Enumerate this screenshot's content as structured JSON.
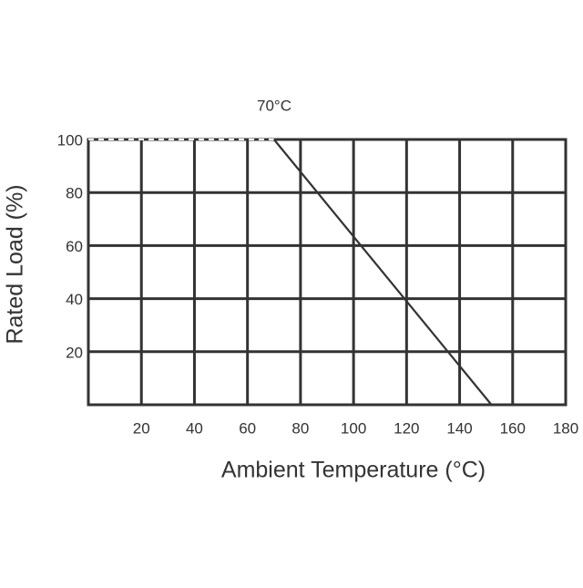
{
  "chart_data": {
    "type": "line",
    "annotation": "70°C",
    "x_label": "Ambient Temperature (°C)",
    "y_label": "Rated Load (%)",
    "series": [
      {
        "x": [
          0,
          70
        ],
        "values": [
          100,
          100
        ],
        "color": "#333333",
        "dashed": true
      },
      {
        "x": [
          70,
          152
        ],
        "values": [
          100,
          0
        ],
        "color": "#333333",
        "dashed": false
      }
    ],
    "xlim": [
      0,
      180
    ],
    "xticks": [
      20,
      40,
      60,
      80,
      100,
      120,
      140,
      160,
      180
    ],
    "ylim": [
      0,
      100
    ],
    "yticks": [
      20,
      40,
      60,
      80,
      100
    ],
    "grid": true
  }
}
